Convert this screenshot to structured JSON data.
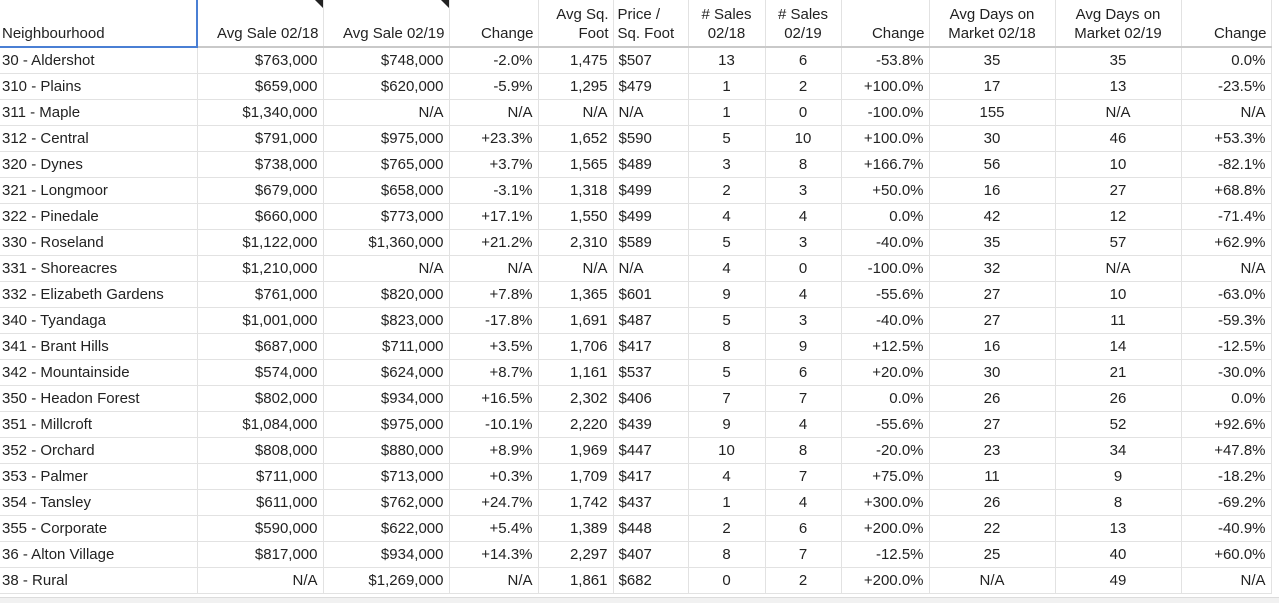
{
  "headers": [
    "Neighbourhood",
    "Avg Sale 02/18",
    "Avg Sale 02/19",
    "Change",
    "Avg Sq.\nFoot",
    "Price /\nSq. Foot",
    "# Sales\n02/18",
    "# Sales\n02/19",
    "Change",
    "Avg Days on\nMarket 02/18",
    "Avg Days on\nMarket 02/19",
    "Change"
  ],
  "rows": [
    [
      "30 - Aldershot",
      "$763,000",
      "$748,000",
      "-2.0%",
      "1,475",
      "$507",
      "13",
      "6",
      "-53.8%",
      "35",
      "35",
      "0.0%"
    ],
    [
      "310 - Plains",
      "$659,000",
      "$620,000",
      "-5.9%",
      "1,295",
      "$479",
      "1",
      "2",
      "+100.0%",
      "17",
      "13",
      "-23.5%"
    ],
    [
      "311 - Maple",
      "$1,340,000",
      "N/A",
      "N/A",
      "N/A",
      "N/A",
      "1",
      "0",
      "-100.0%",
      "155",
      "N/A",
      "N/A"
    ],
    [
      "312 - Central",
      "$791,000",
      "$975,000",
      "+23.3%",
      "1,652",
      "$590",
      "5",
      "10",
      "+100.0%",
      "30",
      "46",
      "+53.3%"
    ],
    [
      "320 - Dynes",
      "$738,000",
      "$765,000",
      "+3.7%",
      "1,565",
      "$489",
      "3",
      "8",
      "+166.7%",
      "56",
      "10",
      "-82.1%"
    ],
    [
      "321 - Longmoor",
      "$679,000",
      "$658,000",
      "-3.1%",
      "1,318",
      "$499",
      "2",
      "3",
      "+50.0%",
      "16",
      "27",
      "+68.8%"
    ],
    [
      "322 - Pinedale",
      "$660,000",
      "$773,000",
      "+17.1%",
      "1,550",
      "$499",
      "4",
      "4",
      "0.0%",
      "42",
      "12",
      "-71.4%"
    ],
    [
      "330 - Roseland",
      "$1,122,000",
      "$1,360,000",
      "+21.2%",
      "2,310",
      "$589",
      "5",
      "3",
      "-40.0%",
      "35",
      "57",
      "+62.9%"
    ],
    [
      "331 - Shoreacres",
      "$1,210,000",
      "N/A",
      "N/A",
      "N/A",
      "N/A",
      "4",
      "0",
      "-100.0%",
      "32",
      "N/A",
      "N/A"
    ],
    [
      "332 - Elizabeth Gardens",
      "$761,000",
      "$820,000",
      "+7.8%",
      "1,365",
      "$601",
      "9",
      "4",
      "-55.6%",
      "27",
      "10",
      "-63.0%"
    ],
    [
      "340 - Tyandaga",
      "$1,001,000",
      "$823,000",
      "-17.8%",
      "1,691",
      "$487",
      "5",
      "3",
      "-40.0%",
      "27",
      "11",
      "-59.3%"
    ],
    [
      "341 - Brant Hills",
      "$687,000",
      "$711,000",
      "+3.5%",
      "1,706",
      "$417",
      "8",
      "9",
      "+12.5%",
      "16",
      "14",
      "-12.5%"
    ],
    [
      "342 - Mountainside",
      "$574,000",
      "$624,000",
      "+8.7%",
      "1,161",
      "$537",
      "5",
      "6",
      "+20.0%",
      "30",
      "21",
      "-30.0%"
    ],
    [
      "350 - Headon Forest",
      "$802,000",
      "$934,000",
      "+16.5%",
      "2,302",
      "$406",
      "7",
      "7",
      "0.0%",
      "26",
      "26",
      "0.0%"
    ],
    [
      "351 - Millcroft",
      "$1,084,000",
      "$975,000",
      "-10.1%",
      "2,220",
      "$439",
      "9",
      "4",
      "-55.6%",
      "27",
      "52",
      "+92.6%"
    ],
    [
      "352 - Orchard",
      "$808,000",
      "$880,000",
      "+8.9%",
      "1,969",
      "$447",
      "10",
      "8",
      "-20.0%",
      "23",
      "34",
      "+47.8%"
    ],
    [
      "353 - Palmer",
      "$711,000",
      "$713,000",
      "+0.3%",
      "1,709",
      "$417",
      "4",
      "7",
      "+75.0%",
      "11",
      "9",
      "-18.2%"
    ],
    [
      "354 - Tansley",
      "$611,000",
      "$762,000",
      "+24.7%",
      "1,742",
      "$437",
      "1",
      "4",
      "+300.0%",
      "26",
      "8",
      "-69.2%"
    ],
    [
      "355 - Corporate",
      "$590,000",
      "$622,000",
      "+5.4%",
      "1,389",
      "$448",
      "2",
      "6",
      "+200.0%",
      "22",
      "13",
      "-40.9%"
    ],
    [
      "36 - Alton Village",
      "$817,000",
      "$934,000",
      "+14.3%",
      "2,297",
      "$407",
      "8",
      "7",
      "-12.5%",
      "25",
      "40",
      "+60.0%"
    ],
    [
      "38 - Rural",
      "N/A",
      "$1,269,000",
      "N/A",
      "1,861",
      "$682",
      "0",
      "2",
      "+200.0%",
      "N/A",
      "49",
      "N/A"
    ]
  ]
}
